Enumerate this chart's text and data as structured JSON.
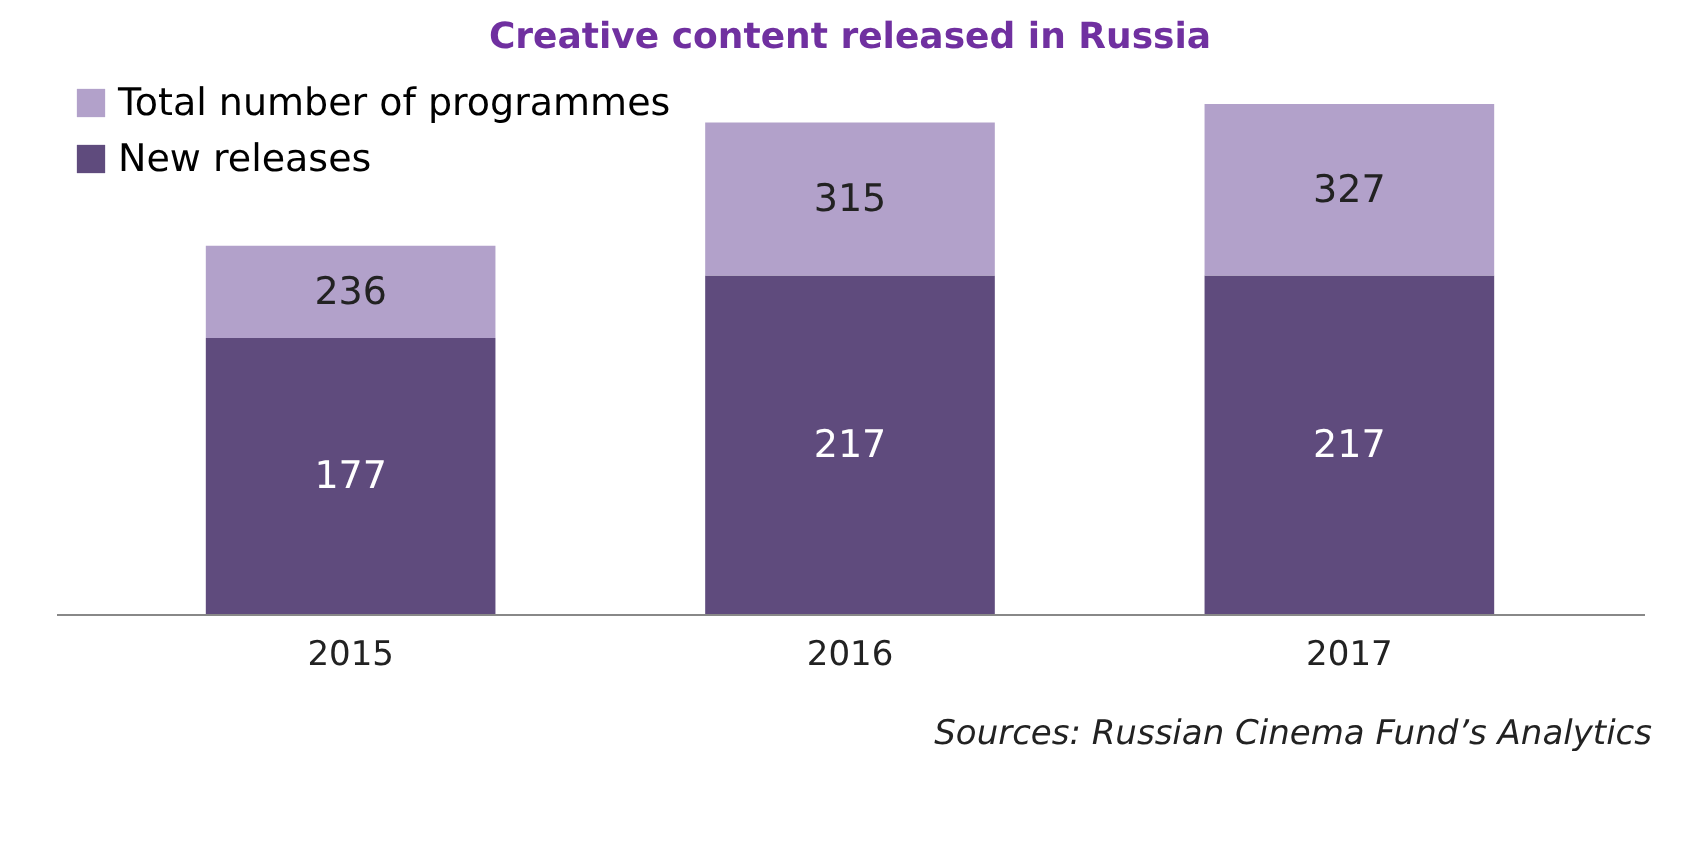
{
  "chart_data": {
    "type": "bar",
    "title": "Creative content released in Russia",
    "categories": [
      "2015",
      "2016",
      "2017"
    ],
    "stacked": true,
    "series": [
      {
        "name": "New releases",
        "color": "#5f4b7d",
        "values": [
          177,
          217,
          217
        ],
        "value_labels": [
          "177",
          "217",
          "217"
        ]
      },
      {
        "name": "Total number of programmes",
        "color": "#b2a1ca",
        "values": [
          59,
          98,
          110
        ]
      }
    ],
    "totals": [
      "236",
      "315",
      "327"
    ],
    "legend": "top left",
    "tick_labels": "x",
    "annotations": [
      "Sources: Russian Cinema Fund’s Analytics"
    ]
  }
}
